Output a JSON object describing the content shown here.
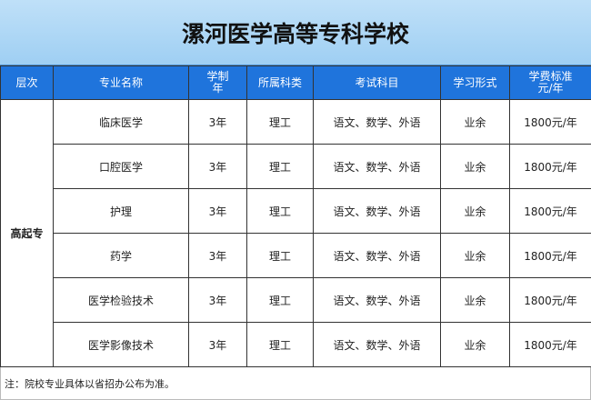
{
  "title": "漯河医学高等专科学校",
  "colors": {
    "title_bg": "#a8d4f5",
    "header_bg": "#1f74dc"
  },
  "table": {
    "headers": [
      "层次",
      "专业名称",
      "学制\n年",
      "所属科类",
      "考试科目",
      "学习形式",
      "学费标准\n元/年"
    ],
    "level": "高起专",
    "rows": [
      {
        "major": "临床医学",
        "years": "3年",
        "category": "理工",
        "subjects": "语文、数学、外语",
        "mode": "业余",
        "fee": "1800元/年"
      },
      {
        "major": "口腔医学",
        "years": "3年",
        "category": "理工",
        "subjects": "语文、数学、外语",
        "mode": "业余",
        "fee": "1800元/年"
      },
      {
        "major": "护理",
        "years": "3年",
        "category": "理工",
        "subjects": "语文、数学、外语",
        "mode": "业余",
        "fee": "1800元/年"
      },
      {
        "major": "药学",
        "years": "3年",
        "category": "理工",
        "subjects": "语文、数学、外语",
        "mode": "业余",
        "fee": "1800元/年"
      },
      {
        "major": "医学检验技术",
        "years": "3年",
        "category": "理工",
        "subjects": "语文、数学、外语",
        "mode": "业余",
        "fee": "1800元/年"
      },
      {
        "major": "医学影像技术",
        "years": "3年",
        "category": "理工",
        "subjects": "语文、数学、外语",
        "mode": "业余",
        "fee": "1800元/年"
      }
    ]
  },
  "note": "注：院校专业具体以省招办公布为准。"
}
